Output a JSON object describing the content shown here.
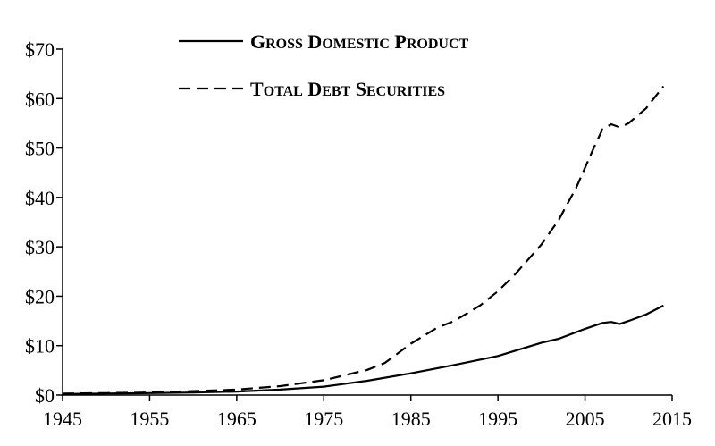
{
  "chart_data": {
    "type": "line",
    "title": "",
    "xlabel": "",
    "ylabel": "",
    "xlim": [
      1945,
      2015
    ],
    "ylim": [
      0,
      70
    ],
    "x_ticks": [
      "1945",
      "1955",
      "1965",
      "1975",
      "1985",
      "1995",
      "2005",
      "2015"
    ],
    "y_ticks": [
      "$0",
      "$10",
      "$20",
      "$30",
      "$40",
      "$50",
      "$60",
      "$70"
    ],
    "grid": false,
    "legend_position": "top-center",
    "series": [
      {
        "name": "Gross Domestic Product",
        "style": "solid",
        "color": "#000000",
        "x": [
          1945,
          1950,
          1955,
          1960,
          1965,
          1970,
          1975,
          1980,
          1985,
          1990,
          1995,
          2000,
          2002,
          2005,
          2007,
          2008,
          2009,
          2010,
          2012,
          2014
        ],
        "y": [
          0.2,
          0.3,
          0.4,
          0.5,
          0.7,
          1.1,
          1.7,
          2.9,
          4.4,
          6.1,
          7.9,
          10.6,
          11.4,
          13.4,
          14.6,
          14.8,
          14.4,
          15.0,
          16.3,
          18.1
        ]
      },
      {
        "name": "Total Debt Securities",
        "style": "dashed",
        "color": "#000000",
        "x": [
          1945,
          1950,
          1955,
          1960,
          1965,
          1970,
          1975,
          1980,
          1982,
          1985,
          1988,
          1990,
          1993,
          1995,
          1997,
          2000,
          2002,
          2004,
          2006,
          2007,
          2008,
          2009,
          2010,
          2012,
          2014
        ],
        "y": [
          0.3,
          0.4,
          0.5,
          0.8,
          1.1,
          1.8,
          3.0,
          5.1,
          6.5,
          10.4,
          13.6,
          15.0,
          18.2,
          21.0,
          24.5,
          30.5,
          35.5,
          42.0,
          50.0,
          53.8,
          54.8,
          54.2,
          55.0,
          58.0,
          62.5
        ]
      }
    ]
  }
}
